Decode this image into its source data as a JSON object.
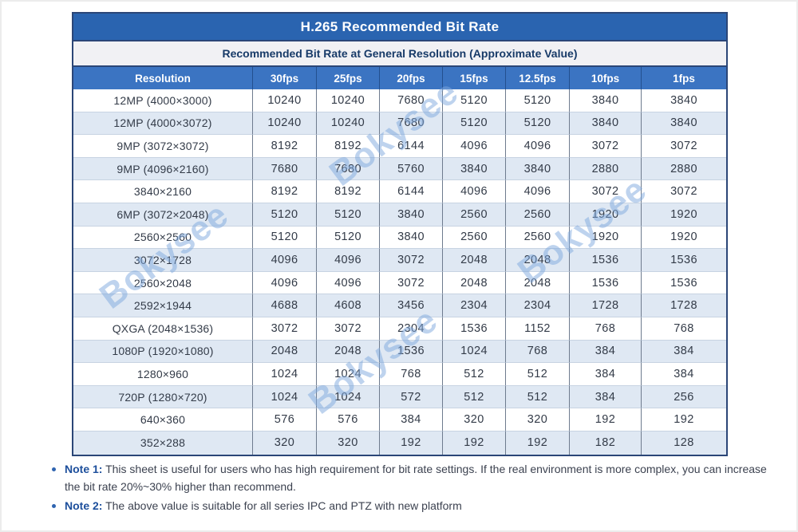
{
  "title": "H.265 Recommended Bit Rate",
  "subtitle": "Recommended Bit Rate at General Resolution (Approximate Value)",
  "watermark": {
    "text": "Bokysee"
  },
  "table": {
    "columns": [
      "Resolution",
      "30fps",
      "25fps",
      "20fps",
      "15fps",
      "12.5fps",
      "10fps",
      "1fps"
    ],
    "rows": [
      {
        "resolution": "12MP (4000×3000)",
        "values": [
          10240,
          10240,
          7680,
          5120,
          5120,
          3840,
          3840
        ]
      },
      {
        "resolution": "12MP (4000×3072)",
        "values": [
          10240,
          10240,
          7680,
          5120,
          5120,
          3840,
          3840
        ]
      },
      {
        "resolution": "9MP (3072×3072)",
        "values": [
          8192,
          8192,
          6144,
          4096,
          4096,
          3072,
          3072
        ]
      },
      {
        "resolution": "9MP (4096×2160)",
        "values": [
          7680,
          7680,
          5760,
          3840,
          3840,
          2880,
          2880
        ]
      },
      {
        "resolution": "3840×2160",
        "values": [
          8192,
          8192,
          6144,
          4096,
          4096,
          3072,
          3072
        ]
      },
      {
        "resolution": "6MP (3072×2048)",
        "values": [
          5120,
          5120,
          3840,
          2560,
          2560,
          1920,
          1920
        ]
      },
      {
        "resolution": "2560×2560",
        "values": [
          5120,
          5120,
          3840,
          2560,
          2560,
          1920,
          1920
        ]
      },
      {
        "resolution": "3072×1728",
        "values": [
          4096,
          4096,
          3072,
          2048,
          2048,
          1536,
          1536
        ]
      },
      {
        "resolution": "2560×2048",
        "values": [
          4096,
          4096,
          3072,
          2048,
          2048,
          1536,
          1536
        ]
      },
      {
        "resolution": "2592×1944",
        "values": [
          4688,
          4608,
          3456,
          2304,
          2304,
          1728,
          1728
        ]
      },
      {
        "resolution": "QXGA (2048×1536)",
        "values": [
          3072,
          3072,
          2304,
          1536,
          1152,
          768,
          768
        ]
      },
      {
        "resolution": "1080P (1920×1080)",
        "values": [
          2048,
          2048,
          1536,
          1024,
          768,
          384,
          384
        ]
      },
      {
        "resolution": "1280×960",
        "values": [
          1024,
          1024,
          768,
          512,
          512,
          384,
          384
        ]
      },
      {
        "resolution": "720P (1280×720)",
        "values": [
          1024,
          1024,
          572,
          512,
          512,
          384,
          256
        ]
      },
      {
        "resolution": "640×360",
        "values": [
          576,
          576,
          384,
          320,
          320,
          192,
          192
        ]
      },
      {
        "resolution": "352×288",
        "values": [
          320,
          320,
          192,
          192,
          192,
          182,
          128
        ]
      }
    ]
  },
  "notes": [
    {
      "label": "Note 1:",
      "text": "This sheet is useful for users who has high requirement for bit rate settings. If the real environment is more complex, you can increase the bit rate 20%~30% higher than recommend."
    },
    {
      "label": "Note 2:",
      "text": "The above value is suitable for all series IPC and PTZ with new platform"
    }
  ],
  "colors": {
    "title_band_bg": "#2a64b0",
    "header_row_bg": "#3b74c2",
    "subtitle_band_bg": "#f1f1f4",
    "subtitle_text": "#173a68",
    "shaded_row_bg": "#dfe8f3",
    "table_frame": "#2b4677",
    "watermark": "#7fa9de",
    "note_label": "#1d4f9c"
  }
}
